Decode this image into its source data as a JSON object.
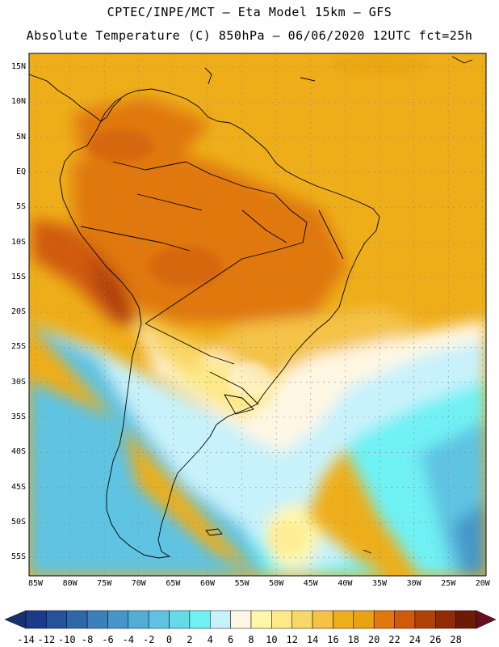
{
  "title_line1": "CPTEC/INPE/MCT –  Eta Model 15km – GFS",
  "title_line2": "Absolute Temperature (C) 850hPa – 06/06/2020 12UTC fct=25h",
  "lat_labels": [
    "15N",
    "10N",
    "5N",
    "EQ",
    "5S",
    "10S",
    "15S",
    "20S",
    "25S",
    "30S",
    "35S",
    "40S",
    "45S",
    "50S",
    "55S"
  ],
  "lon_labels": [
    "85W",
    "80W",
    "75W",
    "70W",
    "65W",
    "60W",
    "55W",
    "50W",
    "45W",
    "40W",
    "35W",
    "30W",
    "25W",
    "20W"
  ],
  "colorbar": {
    "labels": [
      "-14",
      "-12",
      "-10",
      "-8",
      "-6",
      "-4",
      "-2",
      "0",
      "2",
      "4",
      "6",
      "8",
      "10",
      "12",
      "14",
      "16",
      "18",
      "20",
      "22",
      "24",
      "26",
      "28"
    ],
    "colors": [
      "#1b3b8a",
      "#25529a",
      "#2e68a9",
      "#3a80bb",
      "#4596c9",
      "#52acd6",
      "#5ec3e2",
      "#65dbea",
      "#6ff1f4",
      "#c8f2fb",
      "#fff7e3",
      "#fff6a8",
      "#fde987",
      "#f9d668",
      "#f4c346",
      "#eeae1a",
      "#e9a310",
      "#e0780e",
      "#d05a0a",
      "#b04107",
      "#8f2c06",
      "#6d1b06"
    ],
    "left_arrow_color": "#173270",
    "right_arrow_color": "#6a0d20"
  },
  "colors": {
    "coast": "#000000",
    "grid": "#8a8a8a"
  }
}
